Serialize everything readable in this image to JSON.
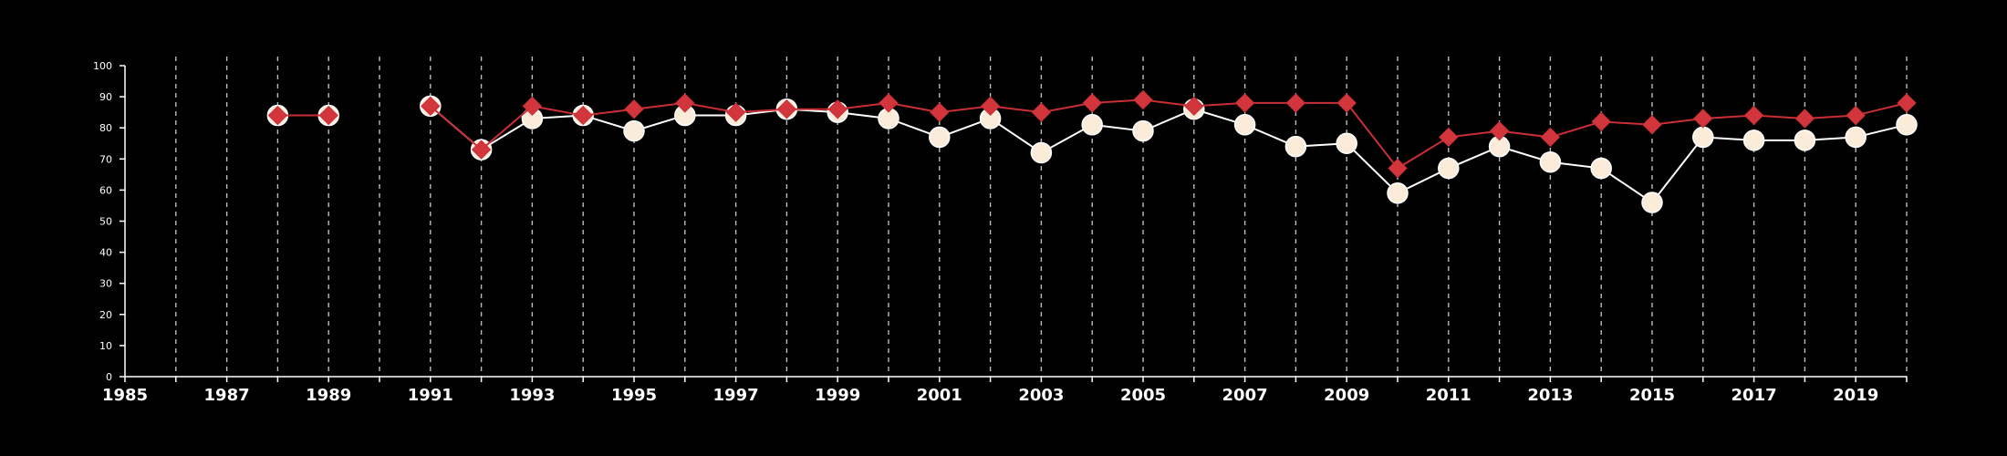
{
  "chart_data": {
    "type": "line",
    "title": "",
    "xlabel": "",
    "ylabel": "",
    "xlim": [
      1985,
      2020
    ],
    "ylim": [
      0,
      100
    ],
    "yticks": [
      0,
      10,
      20,
      30,
      40,
      50,
      60,
      70,
      80,
      90,
      100
    ],
    "xticks": [
      1985,
      1987,
      1989,
      1991,
      1993,
      1995,
      1997,
      1999,
      2001,
      2003,
      2005,
      2007,
      2009,
      2011,
      2013,
      2015,
      2017,
      2019
    ],
    "vertical_gridlines": "dashed, every year",
    "x": [
      1985,
      1986,
      1987,
      1988,
      1989,
      1990,
      1991,
      1992,
      1993,
      1994,
      1995,
      1996,
      1997,
      1998,
      1999,
      2000,
      2001,
      2002,
      2003,
      2004,
      2005,
      2006,
      2007,
      2008,
      2009,
      2010,
      2011,
      2012,
      2013,
      2014,
      2015,
      2016,
      2017,
      2018,
      2019,
      2020
    ],
    "series": [
      {
        "marker": "circle",
        "line_color": "#ffffff",
        "fill_color": "#fbebd9",
        "values": [
          null,
          null,
          null,
          84,
          84,
          null,
          87,
          73,
          83,
          84,
          79,
          84,
          84,
          86,
          85,
          83,
          77,
          83,
          72,
          81,
          79,
          86,
          81,
          74,
          75,
          59,
          67,
          74,
          69,
          67,
          56,
          77,
          76,
          76,
          77,
          81
        ]
      },
      {
        "marker": "diamond",
        "line_color": "#c92f35",
        "fill_color": "#d2363c",
        "values": [
          null,
          null,
          null,
          84,
          84,
          null,
          87,
          73,
          87,
          84,
          86,
          88,
          85,
          86,
          86,
          88,
          85,
          87,
          85,
          88,
          89,
          87,
          88,
          88,
          88,
          67,
          77,
          79,
          77,
          82,
          81,
          83,
          84,
          83,
          84,
          88
        ]
      }
    ]
  }
}
